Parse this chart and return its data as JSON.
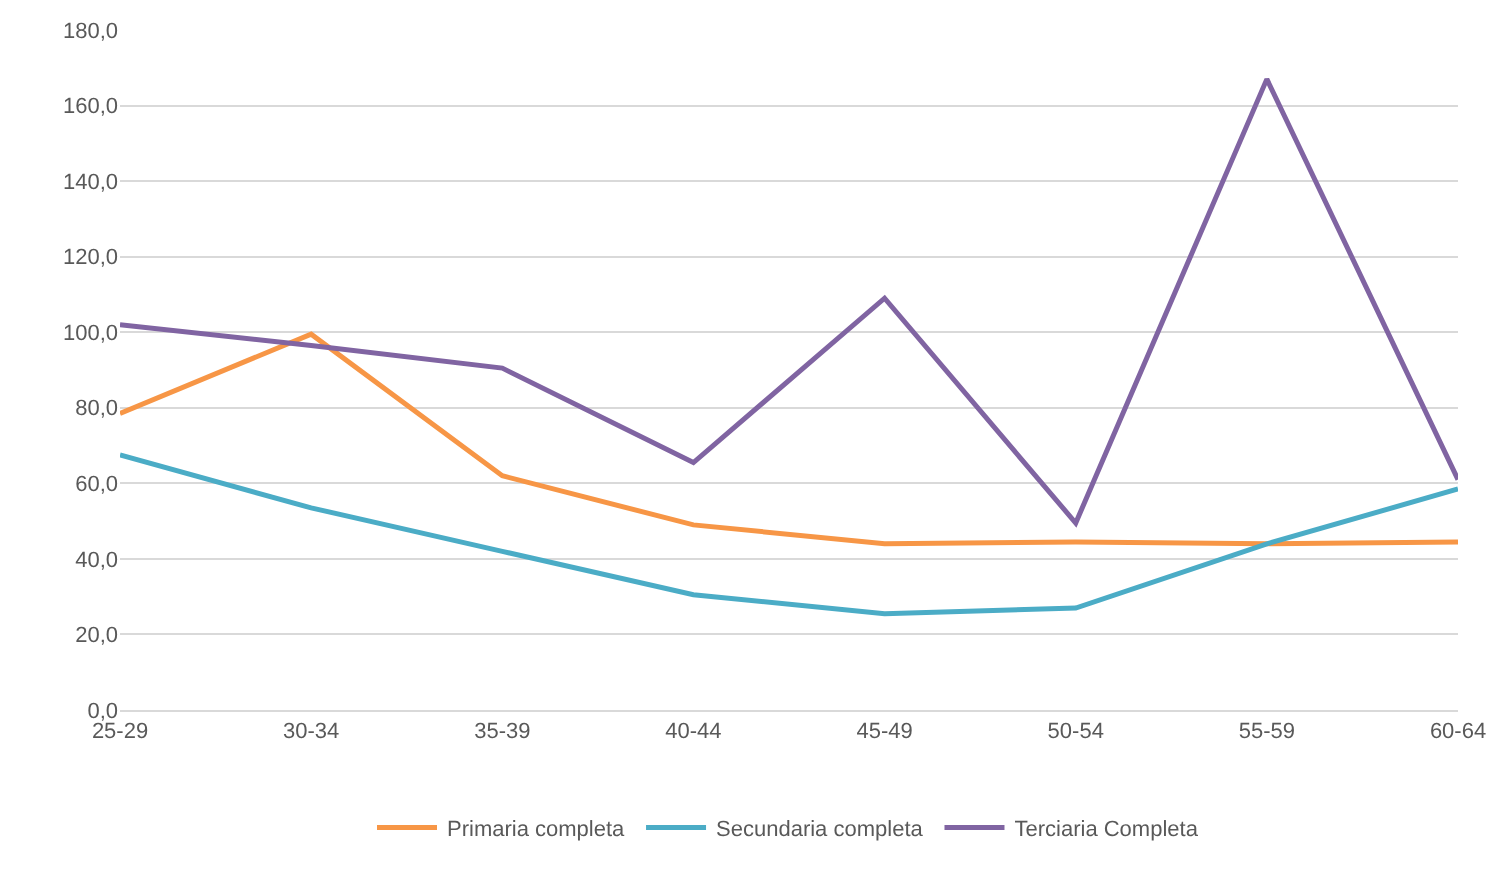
{
  "chart_data": {
    "type": "line",
    "categories": [
      "25-29",
      "30-34",
      "35-39",
      "40-44",
      "45-49",
      "50-54",
      "55-59",
      "60-64"
    ],
    "series": [
      {
        "name": "Primaria completa",
        "color": "#f79646",
        "values": [
          78.5,
          99.5,
          62,
          49,
          44,
          44.5,
          44,
          44.5
        ]
      },
      {
        "name": "Secundaria completa",
        "color": "#4bacc6",
        "values": [
          67.5,
          53.5,
          42,
          30.5,
          25.5,
          27,
          44,
          58.5
        ]
      },
      {
        "name": "Terciaria Completa",
        "color": "#8064a2",
        "values": [
          102,
          96.5,
          90.5,
          65.5,
          109,
          49.5,
          167,
          61
        ]
      }
    ],
    "ylim": [
      0,
      180
    ],
    "yticks": [
      {
        "value": 0,
        "label": "0,0"
      },
      {
        "value": 20,
        "label": "20,0"
      },
      {
        "value": 40,
        "label": "40,0"
      },
      {
        "value": 60,
        "label": "60,0"
      },
      {
        "value": 80,
        "label": "80,0"
      },
      {
        "value": 100,
        "label": "100,0"
      },
      {
        "value": 120,
        "label": "120,0"
      },
      {
        "value": 140,
        "label": "140,0"
      },
      {
        "value": 160,
        "label": "160,0"
      },
      {
        "value": 180,
        "label": "180,0"
      }
    ],
    "grid": "y",
    "legend": "bottom",
    "marker": "none",
    "line_style": "solid"
  }
}
